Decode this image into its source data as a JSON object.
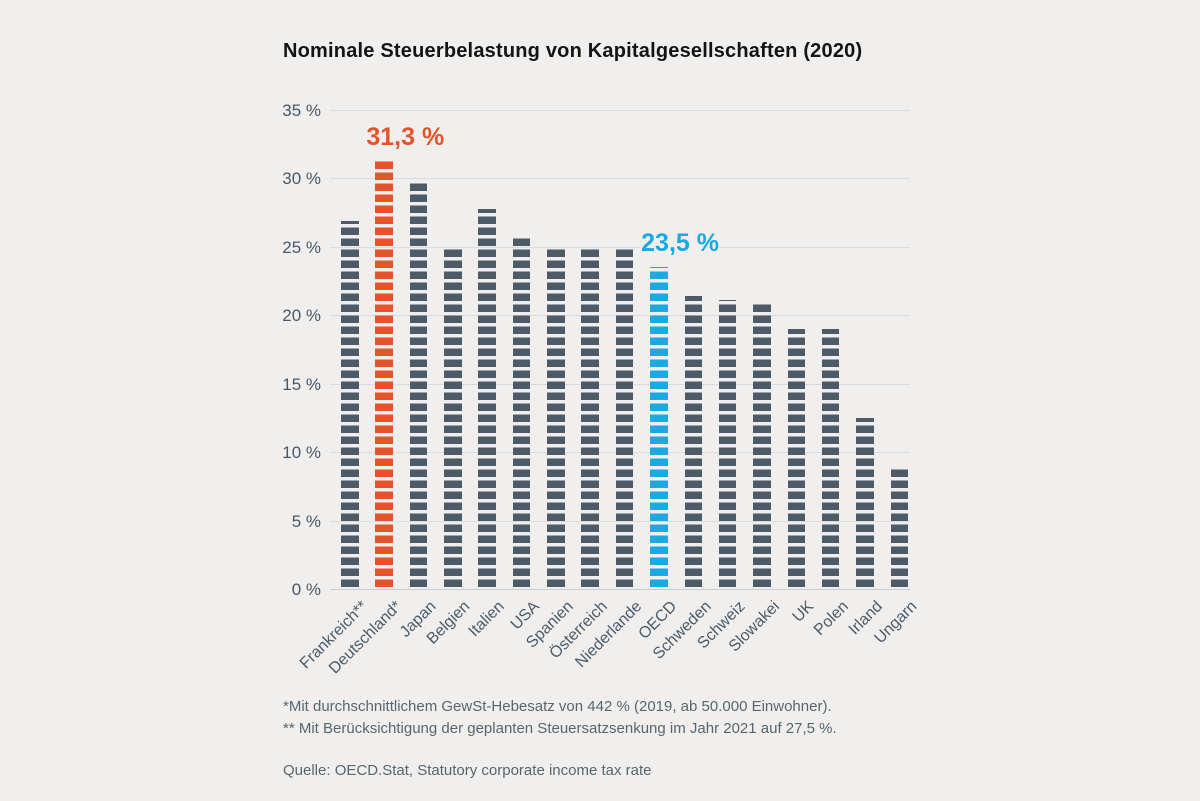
{
  "chart_data": {
    "type": "bar",
    "title": "Nominale Steuerbelastung von Kapitalgesellschaften (2020)",
    "categories": [
      "Frankreich**",
      "Deutschland*",
      "Japan",
      "Belgien",
      "Italien",
      "USA",
      "Spanien",
      "Österreich",
      "Niederlande",
      "OECD",
      "Schweden",
      "Schweiz",
      "Slowakei",
      "UK",
      "Polen",
      "Irland",
      "Ungarn"
    ],
    "values": [
      26.9,
      31.3,
      29.7,
      25.0,
      27.8,
      25.8,
      25.0,
      25.0,
      25.0,
      23.5,
      21.4,
      21.1,
      21.0,
      19.0,
      19.0,
      12.5,
      9.0
    ],
    "unit": "%",
    "ylim": [
      0,
      35
    ],
    "ytick_step": 5,
    "yticks": [
      "35 %",
      "30 %",
      "25 %",
      "20 %",
      "15 %",
      "10 %",
      "5 %",
      "0 %"
    ],
    "grid": true,
    "bar_color_default": "#4c5b67",
    "bar_style": "horizontal-dashes",
    "highlights": [
      {
        "category": "Deutschland*",
        "value_label": "31,3 %",
        "color": "#e4532a"
      },
      {
        "category": "OECD",
        "value_label": "23,5 %",
        "color": "#1ba9e2"
      }
    ]
  },
  "footnotes": [
    "*Mit durchschnittlichem GewSt-Hebesatz von 442 % (2019, ab 50.000 Einwohner).",
    "** Mit Berücksichtigung der geplanten Steuersatzsenkung im Jahr 2021 auf 27,5 %."
  ],
  "source": "Quelle: OECD.Stat, Statutory corporate income tax rate"
}
